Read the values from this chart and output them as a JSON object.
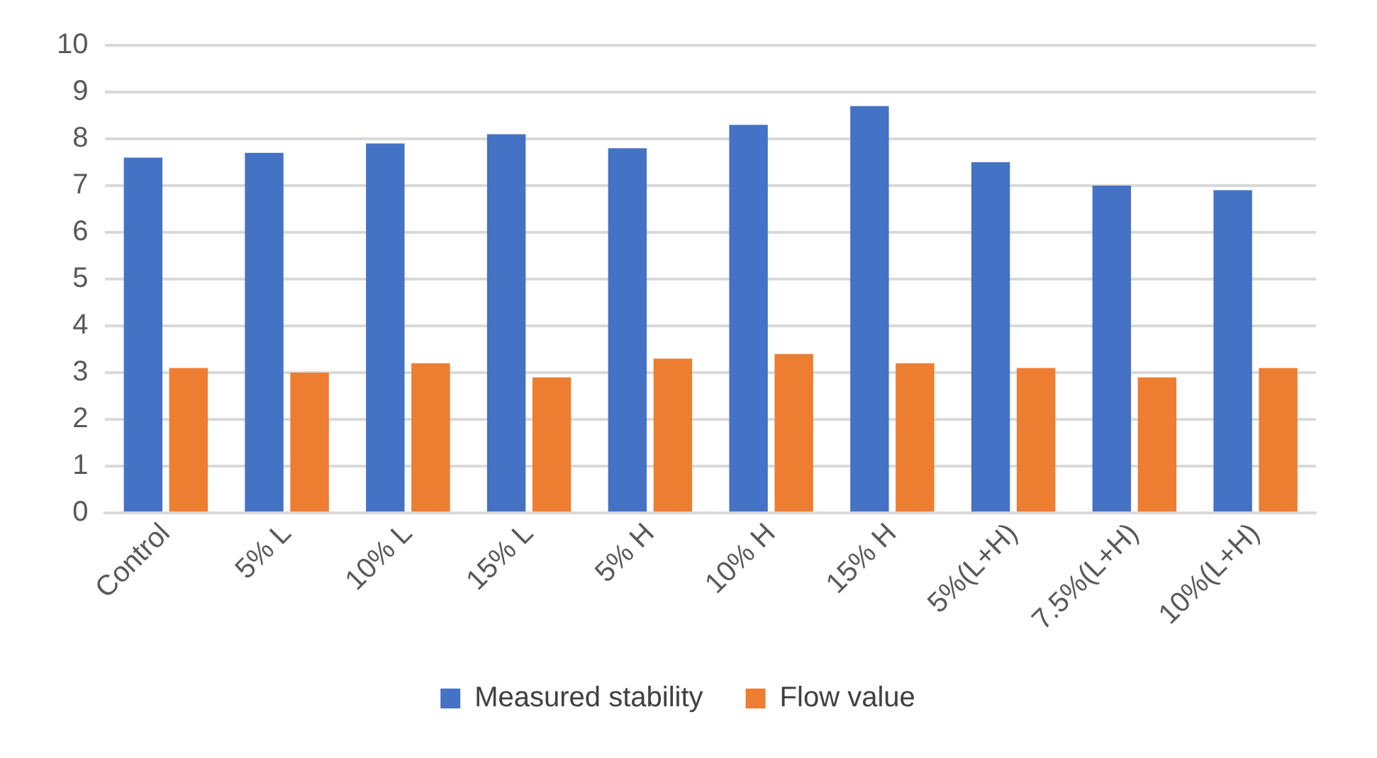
{
  "chart_data": {
    "type": "bar",
    "categories": [
      "Control",
      "5% L",
      "10% L",
      "15% L",
      "5% H",
      "10% H",
      "15% H",
      "5%(L+H)",
      "7.5%(L+H)",
      "10%(L+H)"
    ],
    "series": [
      {
        "name": "Measured stability",
        "color": "#4472c4",
        "values": [
          7.6,
          7.7,
          7.9,
          8.1,
          7.8,
          8.3,
          8.7,
          7.5,
          7.0,
          6.9
        ]
      },
      {
        "name": "Flow value",
        "color": "#ed7d31",
        "values": [
          3.1,
          3.0,
          3.2,
          2.9,
          3.3,
          3.4,
          3.2,
          3.1,
          2.9,
          3.1
        ]
      }
    ],
    "ylim": [
      0,
      10
    ],
    "yticks": [
      0,
      1,
      2,
      3,
      4,
      5,
      6,
      7,
      8,
      9,
      10
    ],
    "grid": "y",
    "legend": "bottom"
  }
}
